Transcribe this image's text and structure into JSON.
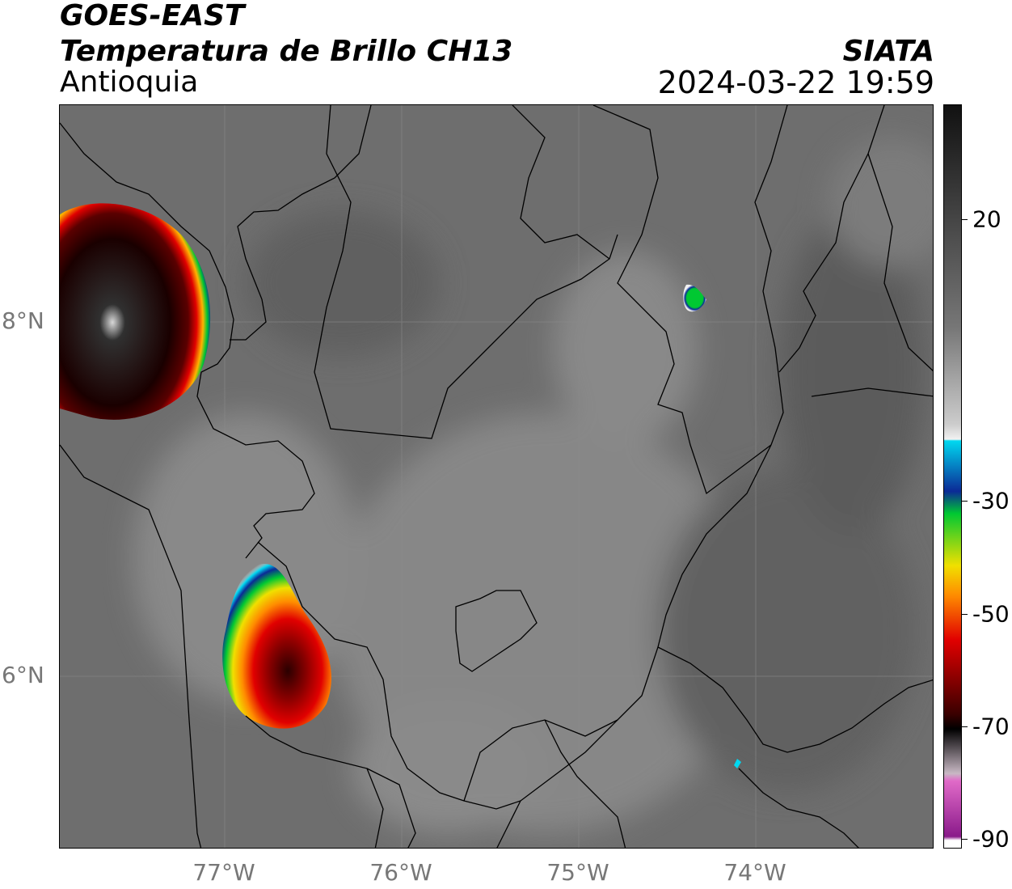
{
  "header": {
    "satellite": "GOES-EAST",
    "product": "Temperatura de Brillo CH13",
    "region": "Antioquia",
    "agency": "SIATA",
    "datetime": "2024-03-22 19:59"
  },
  "map": {
    "lat_labels": [
      "8°N",
      "6°N"
    ],
    "lon_labels": [
      "77°W",
      "76°W",
      "75°W",
      "74°W"
    ]
  },
  "colorbar": {
    "ticks": [
      "20",
      "-30",
      "-50",
      "-70",
      "-90"
    ],
    "colors": {
      "warm_top": "#111111",
      "warm_mid": "#777777",
      "cool_light": "#f2f2f2",
      "cyan": "#00d8f0",
      "blue": "#0b2a96",
      "green": "#00c832",
      "yellow": "#f0e000",
      "orange": "#ff8c00",
      "red": "#e10000",
      "dark_red": "#5a0000",
      "black": "#000000",
      "pink": "#e06ac8",
      "purple": "#8a1a8a"
    }
  }
}
